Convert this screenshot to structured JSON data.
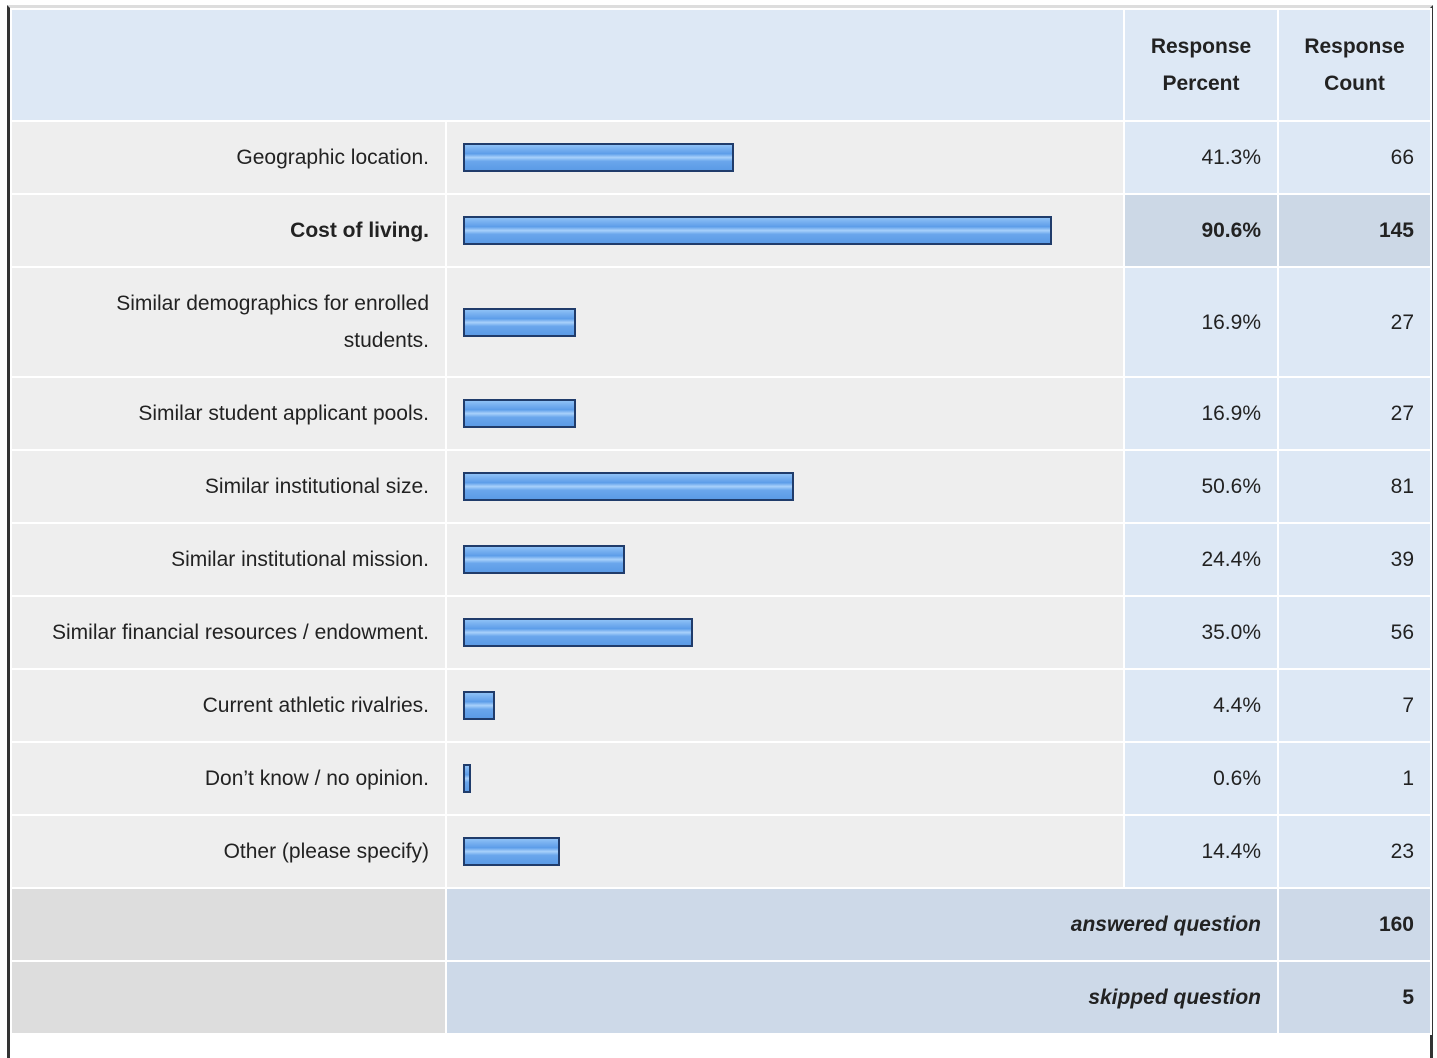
{
  "header": {
    "percent": "Response Percent",
    "count": "Response Count"
  },
  "rows": [
    {
      "label": "Geographic location.",
      "percent": 41.3,
      "percent_label": "41.3%",
      "count": 66
    },
    {
      "label": "Cost of living.",
      "percent": 90.6,
      "percent_label": "90.6%",
      "count": 145,
      "highlighted": true
    },
    {
      "label": "Similar demographics for enrolled students.",
      "percent": 16.9,
      "percent_label": "16.9%",
      "count": 27
    },
    {
      "label": "Similar student applicant pools.",
      "percent": 16.9,
      "percent_label": "16.9%",
      "count": 27
    },
    {
      "label": "Similar institutional size.",
      "percent": 50.6,
      "percent_label": "50.6%",
      "count": 81
    },
    {
      "label": "Similar institutional mission.",
      "percent": 24.4,
      "percent_label": "24.4%",
      "count": 39
    },
    {
      "label": "Similar financial resources / endowment.",
      "percent": 35.0,
      "percent_label": "35.0%",
      "count": 56
    },
    {
      "label": "Current athletic rivalries.",
      "percent": 4.4,
      "percent_label": "4.4%",
      "count": 7
    },
    {
      "label": "Don’t know / no opinion.",
      "percent": 0.6,
      "percent_label": "0.6%",
      "count": 1
    },
    {
      "label": "Other (please specify)",
      "percent": 14.4,
      "percent_label": "14.4%",
      "count": 23
    }
  ],
  "footer": [
    {
      "label": "answered question",
      "count": 160
    },
    {
      "label": "skipped question",
      "count": 5
    }
  ]
}
